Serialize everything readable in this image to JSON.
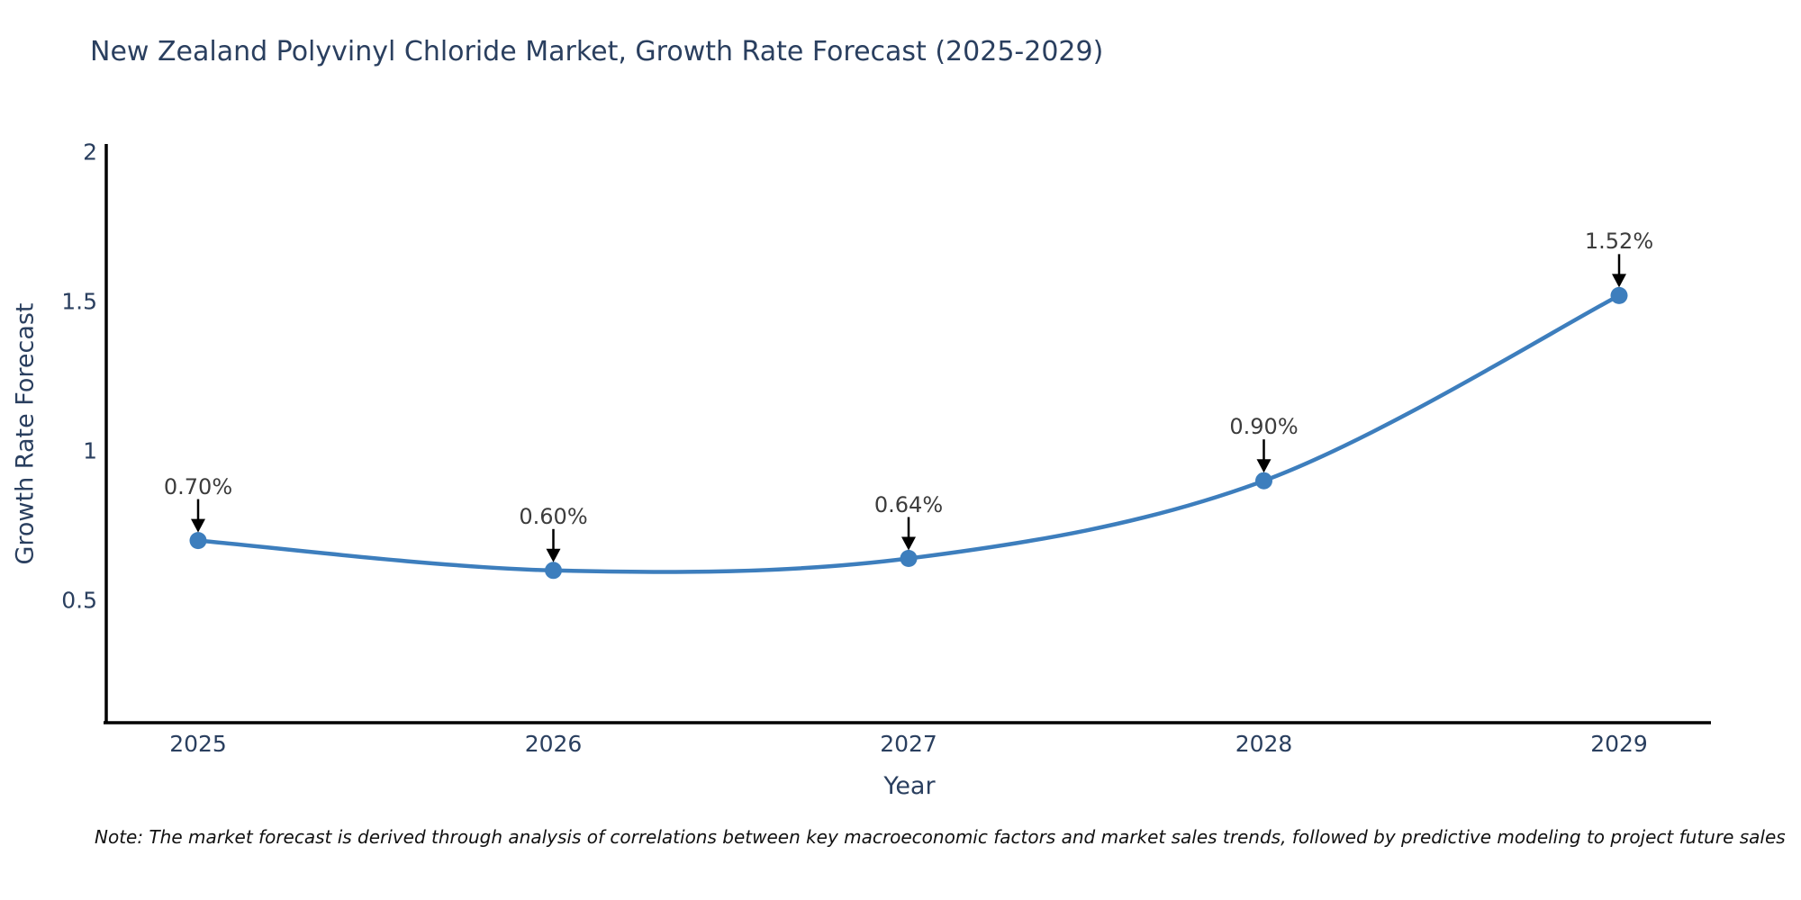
{
  "chart_data": {
    "type": "line",
    "title": "New Zealand Polyvinyl Chloride Market, Growth Rate Forecast (2025-2029)",
    "xlabel": "Year",
    "ylabel": "Growth Rate Forecast",
    "x": [
      2025,
      2026,
      2027,
      2028,
      2029
    ],
    "y": [
      0.7,
      0.6,
      0.64,
      0.9,
      1.52
    ],
    "point_labels": [
      "0.70%",
      "0.60%",
      "0.64%",
      "0.90%",
      "1.52%"
    ],
    "x_tick_labels": [
      "2025",
      "2026",
      "2027",
      "2028",
      "2029"
    ],
    "y_ticks": [
      0.5,
      1,
      1.5,
      2
    ],
    "y_tick_labels": [
      "0.5",
      "1",
      "1.5",
      "2"
    ],
    "ylim": [
      0.09,
      2.03
    ],
    "line_shape": "spline",
    "grid": false,
    "legend": "none",
    "colors": {
      "line": "#3d7ebd",
      "marker": "#3d7ebd",
      "axis": "#000000",
      "text": "#2a3f5f",
      "annotation_text": "#3c3c3c",
      "annotation_arrow": "#000000"
    },
    "note": "Note: The market forecast is derived through analysis of correlations between key macroeconomic factors and market sales trends, followed by predictive modeling to project future sales"
  }
}
